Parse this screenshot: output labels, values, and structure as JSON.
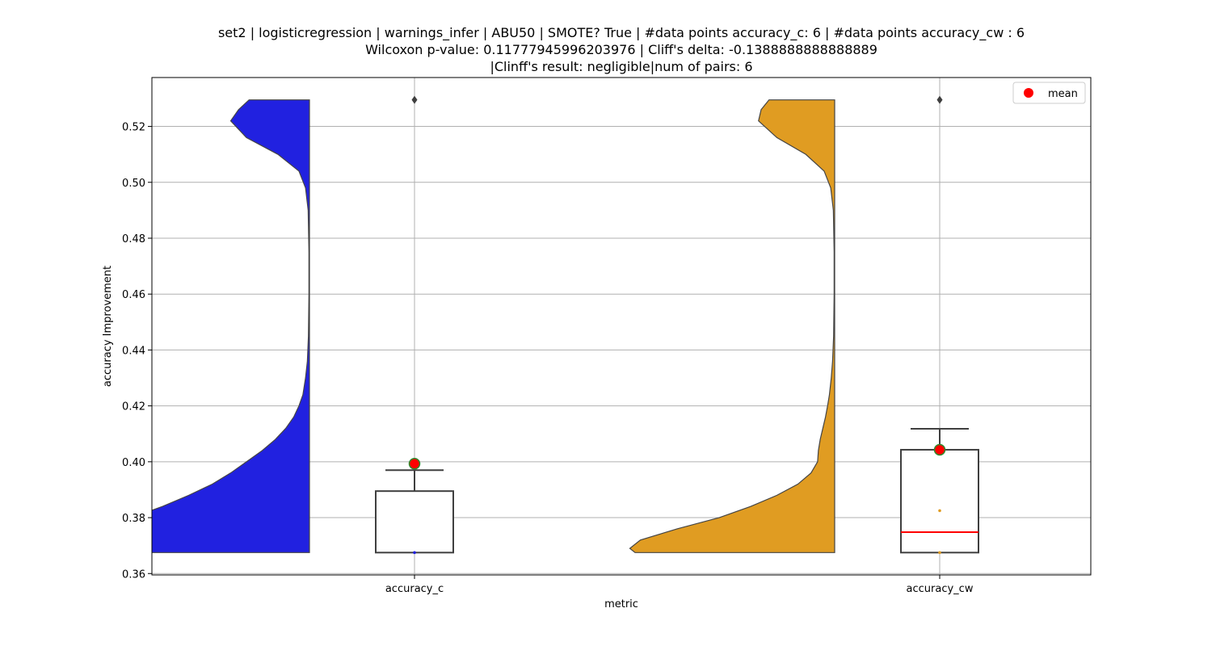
{
  "chart_data": {
    "type": "violin+box",
    "title_lines": [
      "set2 | logisticregression | warnings_infer | ABU50 | SMOTE? True | #data points accuracy_c: 6 | #data points accuracy_cw : 6",
      "Wilcoxon p-value: 0.11777945996203976 | Cliff's delta: -0.1388888888888889",
      "|Clinff's result: negligible|num of pairs: 6"
    ],
    "xlabel": "metric",
    "ylabel": "accuracy Improvement",
    "categories": [
      "accuracy_c",
      "accuracy_cw"
    ],
    "ylim": [
      0.3595,
      0.5375
    ],
    "yticks": [
      0.36,
      0.38,
      0.4,
      0.42,
      0.44,
      0.46,
      0.48,
      0.5,
      0.52
    ],
    "ytick_labels": [
      "0.36",
      "0.38",
      "0.40",
      "0.42",
      "0.44",
      "0.46",
      "0.48",
      "0.50",
      "0.52"
    ],
    "grid": true,
    "legend": {
      "position": "top-right",
      "entries": [
        {
          "label": "mean",
          "color": "#ff0000",
          "marker": "circle"
        }
      ]
    },
    "series": [
      {
        "category": "accuracy_c",
        "violin_color": "#2121e0",
        "violin_range": [
          0.3675,
          0.5295
        ],
        "violin_profile": [
          [
            0.3675,
            0.96
          ],
          [
            0.372,
            0.91
          ],
          [
            0.376,
            0.83
          ],
          [
            0.38,
            0.68
          ],
          [
            0.384,
            0.56
          ],
          [
            0.388,
            0.46
          ],
          [
            0.392,
            0.37
          ],
          [
            0.396,
            0.3
          ],
          [
            0.4,
            0.24
          ],
          [
            0.404,
            0.18
          ],
          [
            0.408,
            0.13
          ],
          [
            0.412,
            0.09
          ],
          [
            0.416,
            0.06
          ],
          [
            0.42,
            0.04
          ],
          [
            0.424,
            0.025
          ],
          [
            0.43,
            0.015
          ],
          [
            0.436,
            0.008
          ],
          [
            0.445,
            0.004
          ],
          [
            0.46,
            0.002
          ],
          [
            0.475,
            0.002
          ],
          [
            0.49,
            0.005
          ],
          [
            0.498,
            0.015
          ],
          [
            0.504,
            0.04
          ],
          [
            0.51,
            0.12
          ],
          [
            0.516,
            0.24
          ],
          [
            0.522,
            0.3
          ],
          [
            0.526,
            0.27
          ],
          [
            0.5295,
            0.23
          ]
        ],
        "box": {
          "q1": 0.3675,
          "median": 0.3675,
          "q3": 0.3895,
          "whisker_low": 0.3675,
          "whisker_high": 0.397
        },
        "outliers": [
          0.5295
        ],
        "points": [
          0.3675
        ],
        "mean": 0.3993
      },
      {
        "category": "accuracy_cw",
        "violin_color": "#e09c22",
        "violin_range": [
          0.3675,
          0.5295
        ],
        "violin_profile": [
          [
            0.3675,
            0.76
          ],
          [
            0.369,
            0.78
          ],
          [
            0.372,
            0.74
          ],
          [
            0.376,
            0.6
          ],
          [
            0.38,
            0.44
          ],
          [
            0.384,
            0.32
          ],
          [
            0.388,
            0.22
          ],
          [
            0.392,
            0.14
          ],
          [
            0.396,
            0.09
          ],
          [
            0.4,
            0.065
          ],
          [
            0.404,
            0.062
          ],
          [
            0.408,
            0.055
          ],
          [
            0.412,
            0.045
          ],
          [
            0.416,
            0.035
          ],
          [
            0.42,
            0.027
          ],
          [
            0.424,
            0.02
          ],
          [
            0.43,
            0.013
          ],
          [
            0.436,
            0.008
          ],
          [
            0.445,
            0.004
          ],
          [
            0.46,
            0.002
          ],
          [
            0.475,
            0.002
          ],
          [
            0.49,
            0.005
          ],
          [
            0.498,
            0.015
          ],
          [
            0.504,
            0.04
          ],
          [
            0.51,
            0.11
          ],
          [
            0.516,
            0.22
          ],
          [
            0.522,
            0.29
          ],
          [
            0.526,
            0.28
          ],
          [
            0.5295,
            0.25
          ]
        ],
        "box": {
          "q1": 0.3675,
          "median": 0.3748,
          "q3": 0.4043,
          "whisker_low": 0.3675,
          "whisker_high": 0.4118
        },
        "outliers": [
          0.5295
        ],
        "points": [
          0.3675,
          0.3825
        ],
        "mean": 0.4043
      }
    ]
  }
}
